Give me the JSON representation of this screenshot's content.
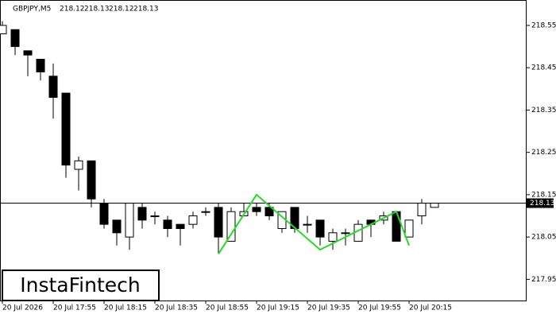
{
  "chart_data": {
    "type": "candlestick",
    "title": "GBPJPY,M5",
    "header_values": [
      218.12,
      218.13,
      218.12,
      218.13
    ],
    "brand": "InstaFintech",
    "categories": [
      "20 Jul 2026",
      null,
      null,
      null,
      "20 Jul 17:55",
      null,
      null,
      null,
      "20 Jul 18:15",
      null,
      null,
      null,
      "20 Jul 18:35",
      null,
      null,
      null,
      "20 Jul 18:55",
      null,
      null,
      null,
      "20 Jul 19:15",
      null,
      null,
      null,
      "20 Jul 19:35",
      null,
      null,
      null,
      "20 Jul 19:55",
      null,
      null,
      null,
      "20 Jul 20:15",
      null,
      null
    ],
    "open": [
      218.53,
      218.54,
      218.49,
      218.47,
      218.43,
      218.39,
      218.21,
      218.23,
      218.13,
      218.09,
      218.05,
      218.12,
      218.1,
      218.09,
      218.08,
      218.08,
      218.11,
      218.12,
      218.04,
      218.1,
      218.12,
      218.12,
      218.07,
      218.12,
      218.08,
      218.09,
      218.04,
      218.06,
      218.04,
      218.09,
      218.09,
      218.11,
      218.05,
      218.1,
      218.12
    ],
    "high": [
      218.56,
      218.54,
      218.49,
      218.47,
      218.46,
      218.39,
      218.24,
      218.23,
      218.14,
      218.09,
      218.13,
      218.13,
      218.11,
      218.1,
      218.08,
      218.11,
      218.12,
      218.13,
      218.12,
      218.13,
      218.13,
      218.13,
      218.11,
      218.12,
      218.1,
      218.09,
      218.07,
      218.07,
      218.09,
      218.09,
      218.11,
      218.11,
      218.09,
      218.14,
      218.13
    ],
    "low": [
      218.53,
      218.48,
      218.43,
      218.42,
      218.33,
      218.19,
      218.16,
      218.12,
      218.07,
      218.03,
      218.02,
      218.07,
      218.08,
      218.05,
      218.03,
      218.07,
      218.1,
      218.01,
      218.04,
      218.1,
      218.1,
      218.09,
      218.06,
      218.06,
      218.06,
      218.03,
      218.02,
      218.03,
      218.04,
      218.05,
      218.08,
      218.04,
      218.05,
      218.08,
      218.12
    ],
    "close": [
      218.55,
      218.5,
      218.48,
      218.44,
      218.38,
      218.22,
      218.23,
      218.14,
      218.08,
      218.06,
      218.13,
      218.09,
      218.1,
      218.07,
      218.07,
      218.1,
      218.11,
      218.05,
      218.11,
      218.11,
      218.11,
      218.1,
      218.11,
      218.07,
      218.08,
      218.05,
      218.06,
      218.06,
      218.08,
      218.08,
      218.1,
      218.04,
      218.09,
      218.13,
      218.13
    ],
    "up_color": "#ffffff",
    "down_color": "#000000",
    "current_price": 218.13,
    "pattern": {
      "color": "#22dd22",
      "index": [
        17,
        20,
        25,
        31,
        32
      ],
      "values": [
        218.01,
        218.15,
        218.02,
        218.11,
        218.03
      ]
    },
    "ylim": [
      217.9,
      218.61
    ],
    "yticks": [
      217.95,
      218.05,
      218.15,
      218.25,
      218.35,
      218.45,
      218.55
    ]
  }
}
